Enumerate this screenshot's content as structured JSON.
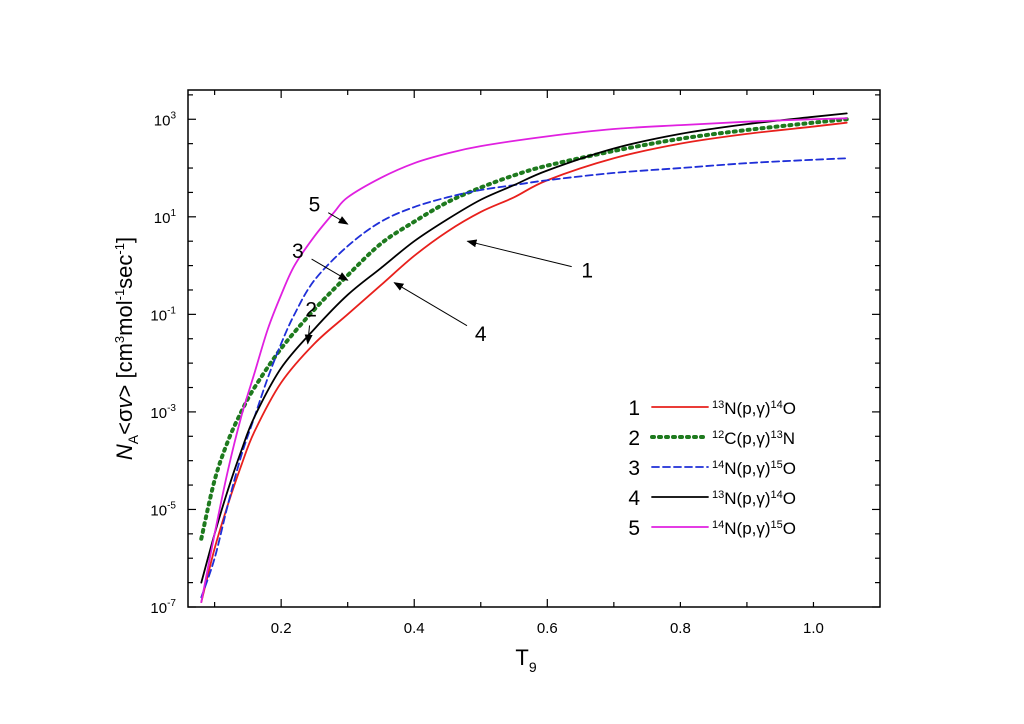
{
  "chart_data": {
    "type": "line",
    "xlabel": "T",
    "xlabel_sub": "9",
    "ylabel_parts": [
      "N",
      "A",
      "<σv>  [cm",
      "3",
      "mol",
      "-1",
      "sec",
      "-1",
      "]"
    ],
    "xlim": [
      0.06,
      1.1
    ],
    "ylim": [
      -7,
      3.6
    ],
    "y_scale": "log10",
    "x_ticks": [
      {
        "value": 0.2,
        "label": "0.2"
      },
      {
        "value": 0.4,
        "label": "0.4"
      },
      {
        "value": 0.6,
        "label": "0.6"
      },
      {
        "value": 0.8,
        "label": "0.8"
      },
      {
        "value": 1.0,
        "label": "1.0"
      }
    ],
    "y_ticks": [
      {
        "exp": -7,
        "base": "10",
        "sup": "-7"
      },
      {
        "exp": -5,
        "base": "10",
        "sup": "-5"
      },
      {
        "exp": -3,
        "base": "10",
        "sup": "-3"
      },
      {
        "exp": -1,
        "base": "10",
        "sup": "-1"
      },
      {
        "exp": 1,
        "base": "10",
        "sup": "1"
      },
      {
        "exp": 3,
        "base": "10",
        "sup": "3"
      }
    ],
    "legend_position": "bottom-right",
    "series": [
      {
        "id": "1",
        "label_parts": [
          {
            "t": "13",
            "s": true
          },
          {
            "t": "N(p,γ)",
            "s": false
          },
          {
            "t": "14",
            "s": true
          },
          {
            "t": "O",
            "s": false
          }
        ],
        "color": "#e8201c",
        "dash": "solid",
        "x": [
          0.08,
          0.1,
          0.12,
          0.14,
          0.16,
          0.2,
          0.25,
          0.3,
          0.35,
          0.4,
          0.45,
          0.5,
          0.55,
          0.6,
          0.7,
          0.8,
          0.9,
          1.0,
          1.05
        ],
        "log10y": [
          -6.9,
          -5.8,
          -4.9,
          -4.1,
          -3.4,
          -2.4,
          -1.6,
          -1.0,
          -0.4,
          0.2,
          0.7,
          1.1,
          1.4,
          1.75,
          2.2,
          2.5,
          2.7,
          2.85,
          2.93
        ]
      },
      {
        "id": "2",
        "label_parts": [
          {
            "t": "12",
            "s": true
          },
          {
            "t": "C(p,γ)",
            "s": false
          },
          {
            "t": "13",
            "s": true
          },
          {
            "t": "N",
            "s": false
          }
        ],
        "color": "#1e7a1e",
        "dash": "dot",
        "x": [
          0.08,
          0.1,
          0.12,
          0.14,
          0.16,
          0.2,
          0.25,
          0.3,
          0.35,
          0.4,
          0.45,
          0.5,
          0.55,
          0.6,
          0.7,
          0.8,
          0.9,
          1.0,
          1.05
        ],
        "log10y": [
          -5.6,
          -4.4,
          -3.6,
          -3.0,
          -2.5,
          -1.7,
          -0.9,
          -0.2,
          0.45,
          0.9,
          1.3,
          1.6,
          1.85,
          2.05,
          2.35,
          2.6,
          2.78,
          2.93,
          3.0
        ]
      },
      {
        "id": "3",
        "label_parts": [
          {
            "t": "14",
            "s": true
          },
          {
            "t": "N(p,γ)",
            "s": false
          },
          {
            "t": "15",
            "s": true
          },
          {
            "t": "O",
            "s": false
          }
        ],
        "color": "#1f2fd8",
        "dash": "dash",
        "x": [
          0.08,
          0.1,
          0.12,
          0.14,
          0.16,
          0.18,
          0.2,
          0.22,
          0.25,
          0.3,
          0.35,
          0.4,
          0.45,
          0.5,
          0.55,
          0.6,
          0.7,
          0.8,
          0.9,
          1.0,
          1.05
        ],
        "log10y": [
          -6.8,
          -6.0,
          -4.9,
          -3.9,
          -3.1,
          -2.3,
          -1.6,
          -1.0,
          -0.3,
          0.4,
          0.9,
          1.2,
          1.4,
          1.55,
          1.65,
          1.75,
          1.9,
          2.0,
          2.1,
          2.17,
          2.2
        ]
      },
      {
        "id": "4",
        "label_parts": [
          {
            "t": "13",
            "s": true
          },
          {
            "t": "N(p,γ)",
            "s": false
          },
          {
            "t": "14",
            "s": true
          },
          {
            "t": "O",
            "s": false
          }
        ],
        "color": "#000000",
        "dash": "solid",
        "x": [
          0.08,
          0.1,
          0.12,
          0.14,
          0.16,
          0.2,
          0.25,
          0.3,
          0.35,
          0.4,
          0.45,
          0.5,
          0.55,
          0.6,
          0.7,
          0.8,
          0.9,
          1.0,
          1.05
        ],
        "log10y": [
          -6.5,
          -5.5,
          -4.6,
          -3.8,
          -3.1,
          -2.1,
          -1.3,
          -0.6,
          -0.05,
          0.5,
          0.95,
          1.35,
          1.65,
          1.95,
          2.4,
          2.7,
          2.9,
          3.05,
          3.12
        ]
      },
      {
        "id": "5",
        "label_parts": [
          {
            "t": "14",
            "s": true
          },
          {
            "t": "N(p,γ)",
            "s": false
          },
          {
            "t": "15",
            "s": true
          },
          {
            "t": "O",
            "s": false
          }
        ],
        "color": "#e020e0",
        "dash": "solid",
        "x": [
          0.08,
          0.1,
          0.12,
          0.14,
          0.16,
          0.18,
          0.2,
          0.22,
          0.25,
          0.28,
          0.3,
          0.35,
          0.4,
          0.45,
          0.5,
          0.6,
          0.7,
          0.8,
          0.9,
          1.0,
          1.05
        ],
        "log10y": [
          -6.9,
          -5.5,
          -4.2,
          -3.1,
          -2.2,
          -1.3,
          -0.6,
          0.0,
          0.6,
          1.1,
          1.4,
          1.8,
          2.1,
          2.3,
          2.45,
          2.65,
          2.8,
          2.88,
          2.95,
          3.0,
          3.02
        ]
      }
    ],
    "annotations": [
      {
        "text": "5",
        "label_x": 0.25,
        "label_log10y": 1.25,
        "arrow_x": 0.3,
        "arrow_log10y": 0.85
      },
      {
        "text": "3",
        "label_x": 0.225,
        "label_log10y": 0.3,
        "arrow_x": 0.3,
        "arrow_log10y": -0.3
      },
      {
        "text": "2",
        "label_x": 0.245,
        "label_log10y": -0.9,
        "arrow_x": 0.24,
        "arrow_log10y": -1.6
      },
      {
        "text": "1",
        "label_x": 0.66,
        "label_log10y": -0.1,
        "arrow_x": 0.48,
        "arrow_log10y": 0.5
      },
      {
        "text": "4",
        "label_x": 0.5,
        "label_log10y": -1.4,
        "arrow_x": 0.37,
        "arrow_log10y": -0.35
      }
    ]
  }
}
